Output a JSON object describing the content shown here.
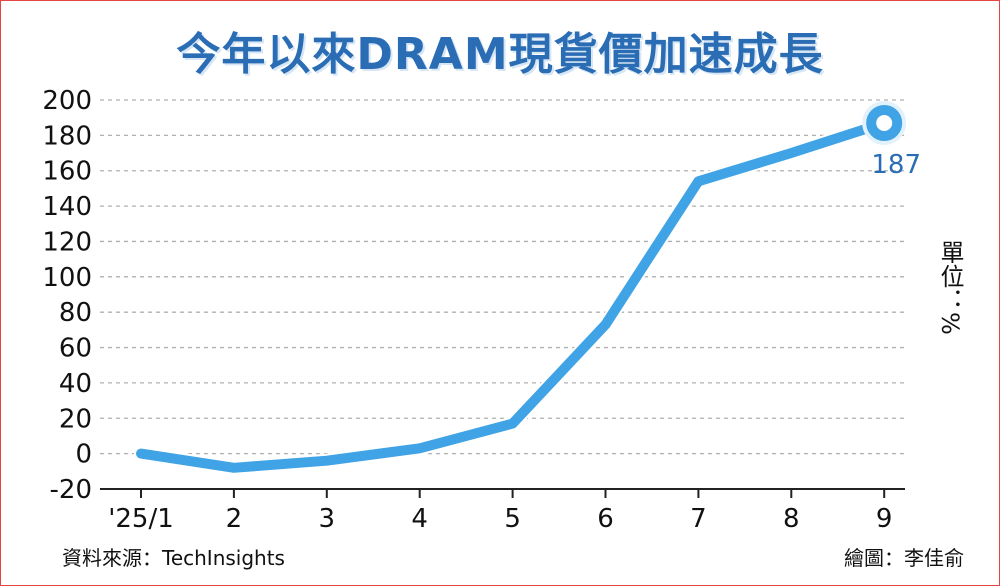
{
  "title": "今年以來DRAM現貨價加速成長",
  "unit_label": "單位：%",
  "source": "資料來源：TechInsights",
  "credit": "繪圖：李佳俞",
  "colors": {
    "line": "#3fa3e6",
    "title": "#2a6db5",
    "value_label": "#2a6db5",
    "frame": "#e64545",
    "grid": "#b0b0b0"
  },
  "chart_data": {
    "type": "line",
    "x": [
      "'25/1",
      "2",
      "3",
      "4",
      "5",
      "6",
      "7",
      "8",
      "9"
    ],
    "series": [
      {
        "values": [
          0,
          -8,
          -4,
          3,
          17,
          73,
          154,
          170,
          187
        ]
      }
    ],
    "ylim": [
      -20,
      200
    ],
    "yticks": [
      200,
      180,
      160,
      140,
      120,
      100,
      80,
      60,
      40,
      20,
      0,
      -20
    ],
    "grid": true,
    "annotations": [
      {
        "point_index": 8,
        "text": "187"
      }
    ]
  }
}
